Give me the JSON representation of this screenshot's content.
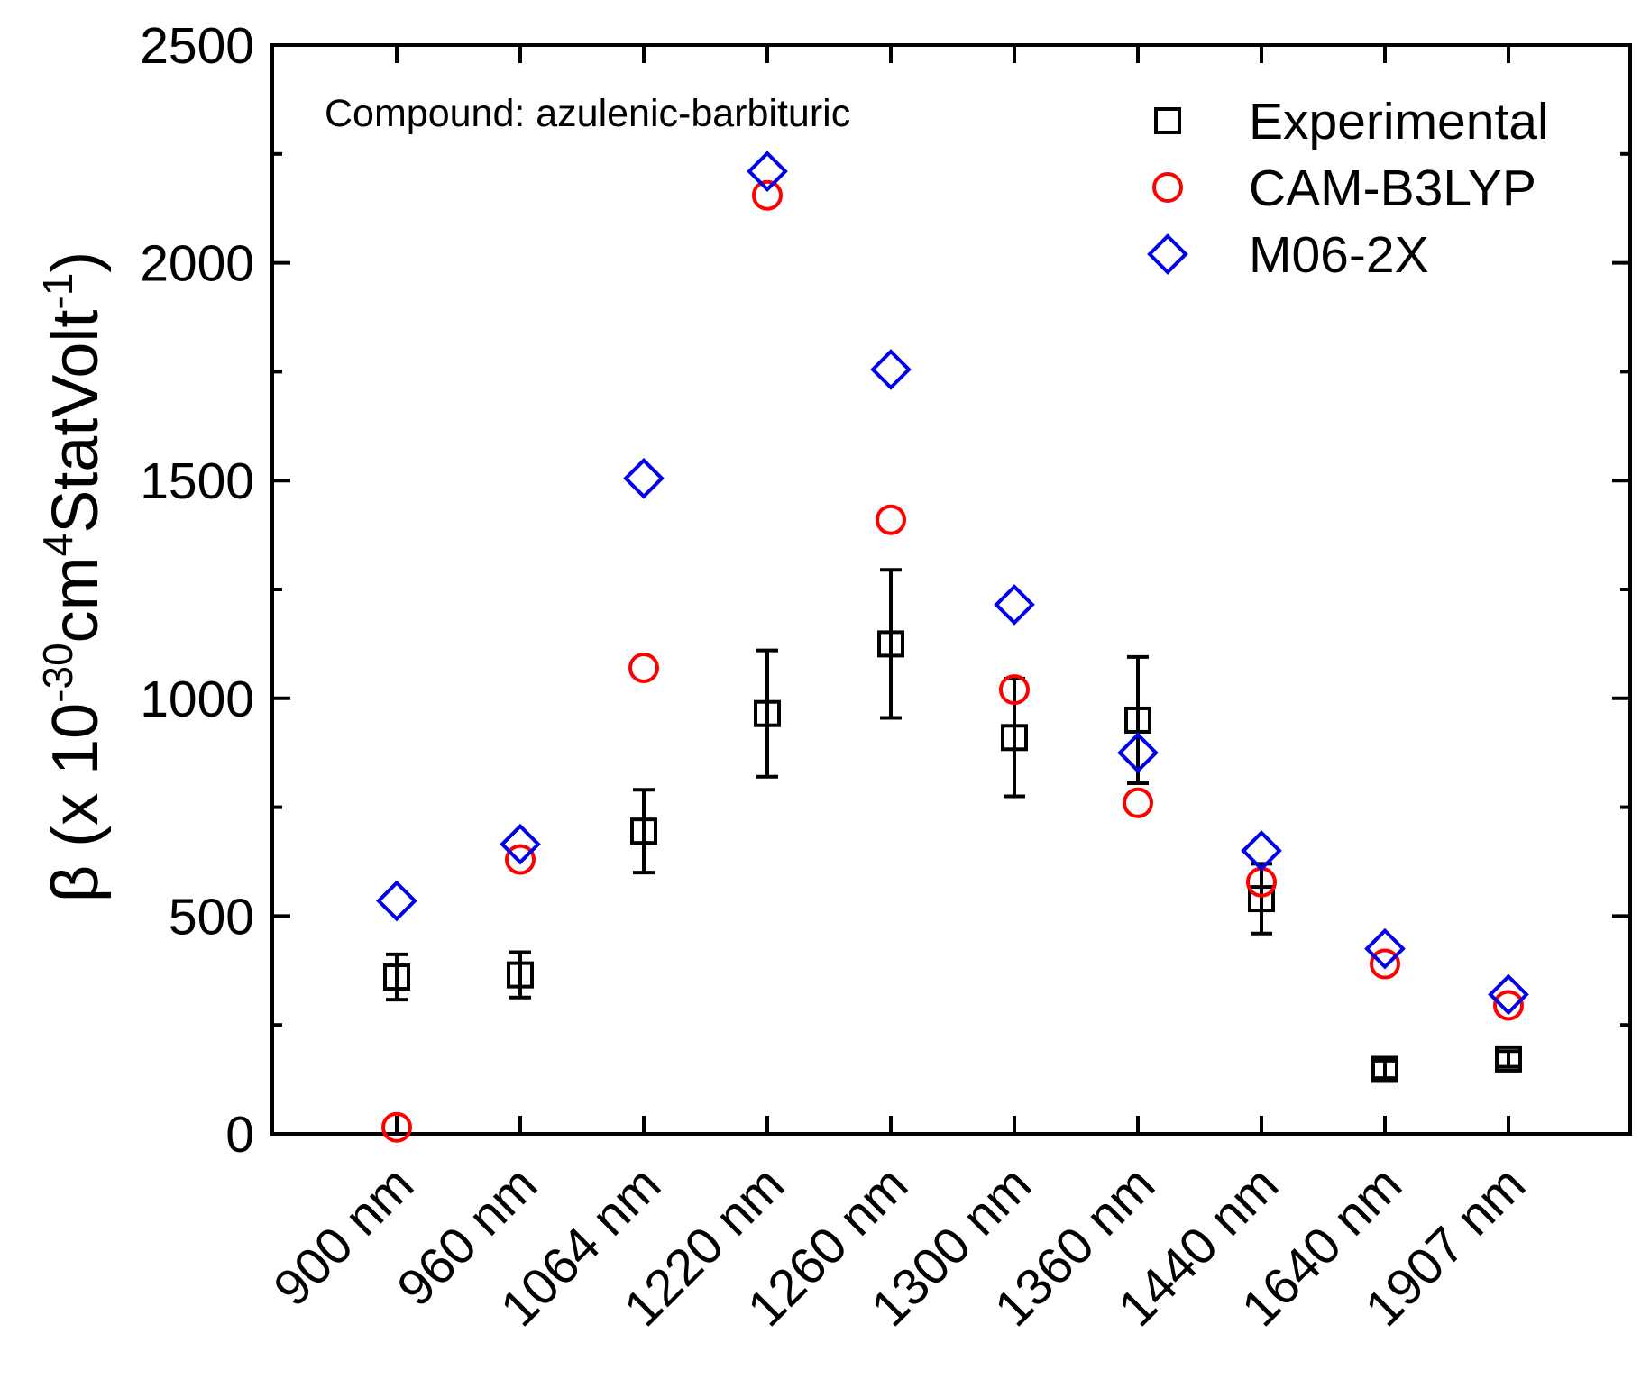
{
  "chart_data": {
    "type": "scatter",
    "title": "",
    "annotation": "Compound: azulenic-barbituric",
    "xlabel": "",
    "ylabel": {
      "prefix": "β (x 10",
      "exp1": "-30",
      "mid": "cm",
      "exp2": "4",
      "mid2": "StatVolt",
      "exp3": "-1",
      "suffix": ")"
    },
    "categories": [
      "900 nm",
      "960 nm",
      "1064 nm",
      "1220 nm",
      "1260 nm",
      "1300 nm",
      "1360 nm",
      "1440 nm",
      "1640 nm",
      "1907 nm"
    ],
    "ylim": [
      0,
      2500
    ],
    "yticks": [
      0,
      500,
      1000,
      1500,
      2000,
      2500
    ],
    "yminor_step": 250,
    "grid": false,
    "legend_position": "top-right",
    "series": [
      {
        "name": "Experimental",
        "marker": "square",
        "color": "#000000",
        "values": [
          360,
          365,
          695,
          965,
          1125,
          910,
          950,
          540,
          148,
          172
        ],
        "errors": [
          52,
          52,
          95,
          145,
          170,
          135,
          145,
          80,
          20,
          18
        ]
      },
      {
        "name": "CAM-B3LYP",
        "marker": "circle",
        "color": "#ff0000",
        "values": [
          15,
          630,
          1070,
          2155,
          1410,
          1020,
          760,
          578,
          390,
          295
        ]
      },
      {
        "name": "M06-2X",
        "marker": "diamond",
        "color": "#0000ee",
        "values": [
          535,
          665,
          1505,
          2210,
          1755,
          1215,
          875,
          650,
          425,
          320
        ]
      }
    ]
  }
}
